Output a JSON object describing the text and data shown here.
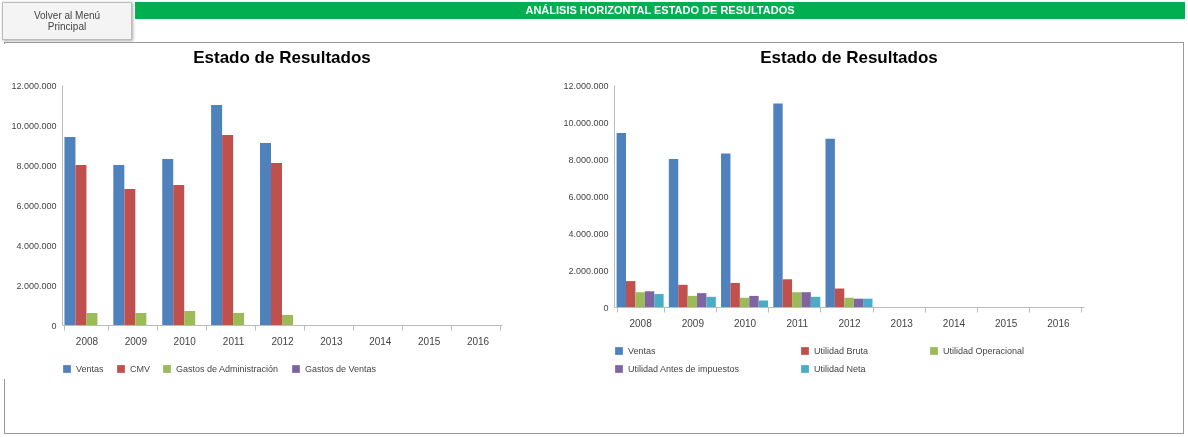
{
  "chart_data": [
    {
      "type": "bar",
      "title": "Estado de Resultados",
      "annotations": [
        "ANÁLISIS HORIZONTAL ESTADO DE RESULTADOS",
        "Volver al Menú Principal"
      ],
      "categories": [
        "2008",
        "2009",
        "2010",
        "2011",
        "2012",
        "2013",
        "2014",
        "2015",
        "2016"
      ],
      "series": [
        {
          "name": "Ventas",
          "color": "#4f81bd",
          "values": [
            9400000,
            8000000,
            8300000,
            11000000,
            9100000,
            null,
            null,
            null,
            null
          ]
        },
        {
          "name": "CMV",
          "color": "#c0504d",
          "values": [
            8000000,
            6800000,
            7000000,
            9500000,
            8100000,
            null,
            null,
            null,
            null
          ]
        },
        {
          "name": "Gastos de Administración",
          "color": "#9bbb59",
          "values": [
            600000,
            600000,
            700000,
            600000,
            500000,
            null,
            null,
            null,
            null
          ]
        },
        {
          "name": "Gastos de Ventas",
          "color": "#8064a2",
          "values": [
            null,
            null,
            null,
            null,
            null,
            null,
            null,
            null,
            null
          ]
        }
      ],
      "ylim": [
        0,
        12000000
      ],
      "yticks": [
        {
          "value": 0,
          "label": "0"
        },
        {
          "value": 2000000,
          "label": "2.000.000"
        },
        {
          "value": 4000000,
          "label": "4.000.000"
        },
        {
          "value": 6000000,
          "label": "6.000.000"
        },
        {
          "value": 8000000,
          "label": "8.000.000"
        },
        {
          "value": 10000000,
          "label": "10.000.000"
        },
        {
          "value": 12000000,
          "label": "12.000.000"
        }
      ],
      "grid": false,
      "legend": "bottom"
    },
    {
      "type": "bar",
      "title": "Estado de Resultados",
      "categories": [
        "2008",
        "2009",
        "2010",
        "2011",
        "2012",
        "2013",
        "2014",
        "2015",
        "2016"
      ],
      "series": [
        {
          "name": "Ventas",
          "color": "#4f81bd",
          "values": [
            9400000,
            8000000,
            8300000,
            11000000,
            9100000,
            null,
            null,
            null,
            null
          ]
        },
        {
          "name": "Utilidad Bruta",
          "color": "#c0504d",
          "values": [
            1400000,
            1200000,
            1300000,
            1500000,
            1000000,
            null,
            null,
            null,
            null
          ]
        },
        {
          "name": "Utilidad Operacional",
          "color": "#9bbb59",
          "values": [
            800000,
            600000,
            500000,
            800000,
            500000,
            null,
            null,
            null,
            null
          ]
        },
        {
          "name": "Utilidad Antes de impuestos",
          "color": "#8064a2",
          "values": [
            850000,
            750000,
            600000,
            800000,
            450000,
            null,
            null,
            null,
            null
          ]
        },
        {
          "name": "Utilidad Neta",
          "color": "#4bacc6",
          "values": [
            700000,
            550000,
            350000,
            550000,
            450000,
            null,
            null,
            null,
            null
          ]
        }
      ],
      "ylim": [
        0,
        12000000
      ],
      "yticks": [
        {
          "value": 0,
          "label": "0"
        },
        {
          "value": 2000000,
          "label": "2.000.000"
        },
        {
          "value": 4000000,
          "label": "4.000.000"
        },
        {
          "value": 6000000,
          "label": "6.000.000"
        },
        {
          "value": 8000000,
          "label": "8.000.000"
        },
        {
          "value": 10000000,
          "label": "10.000.000"
        },
        {
          "value": 12000000,
          "label": "12.000.000"
        }
      ],
      "grid": false,
      "legend": "bottom"
    }
  ]
}
